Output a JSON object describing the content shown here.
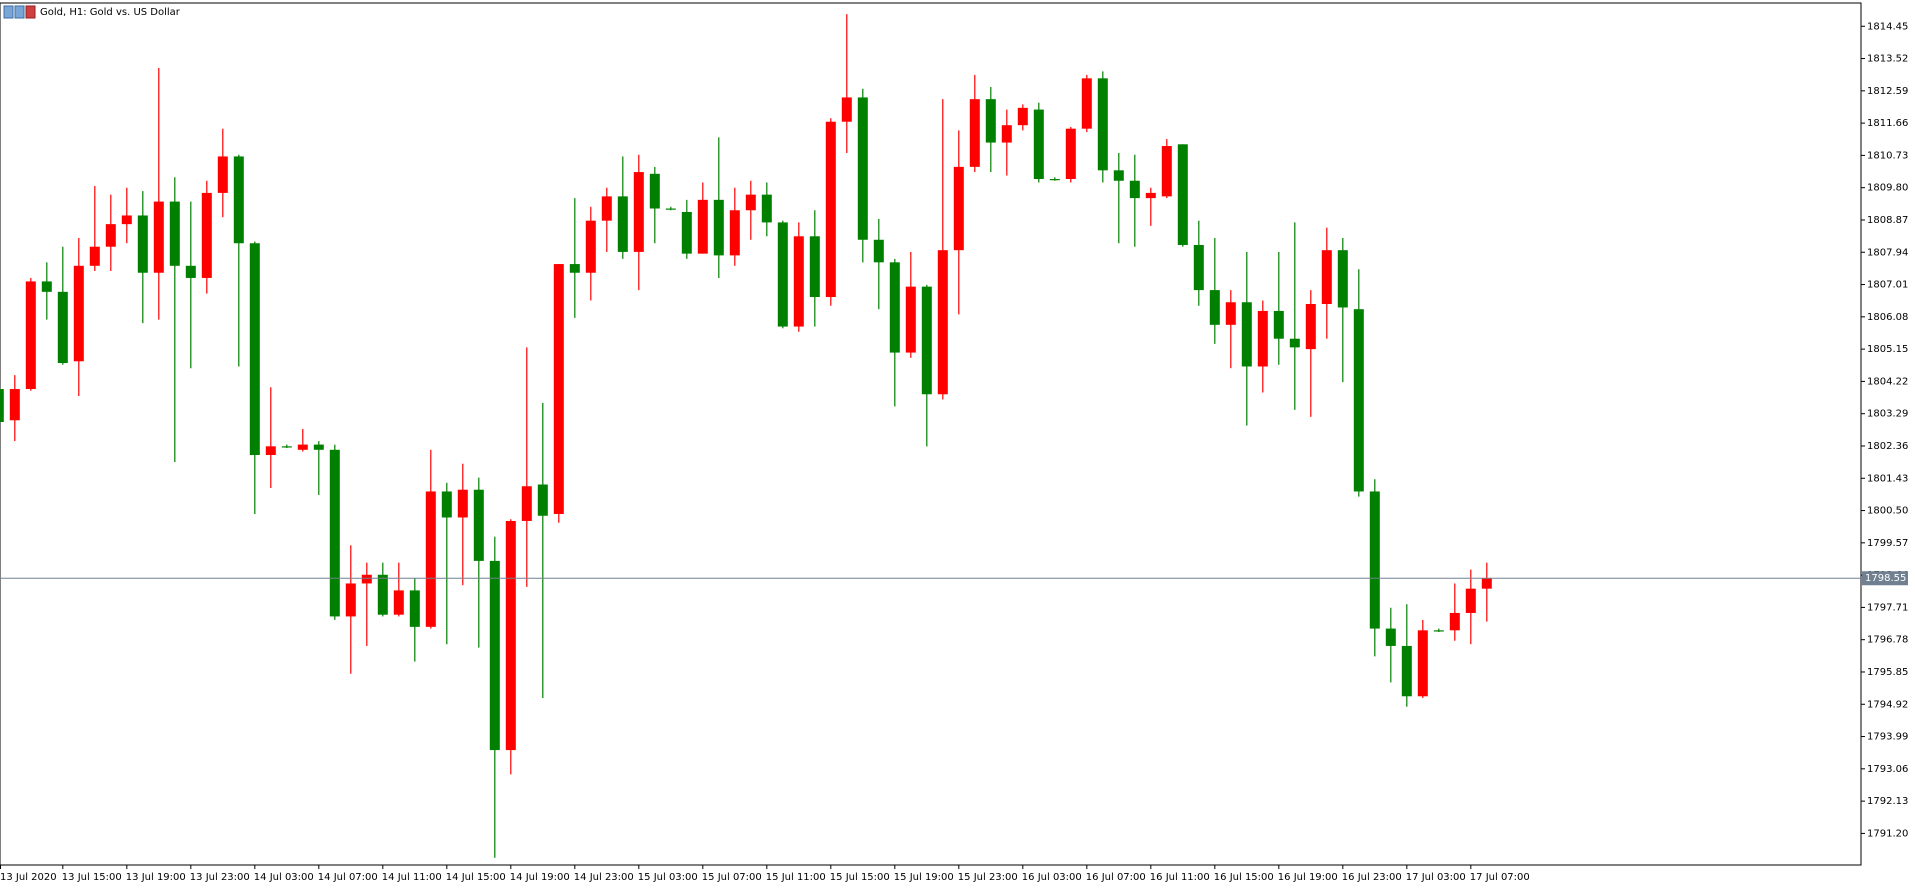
{
  "chart_data": {
    "type": "candlestick",
    "title": "Gold, H1:  Gold vs. US Dollar",
    "categories": [
      "13 Jul 2020",
      null,
      null,
      null,
      "13 Jul 15:00",
      null,
      null,
      null,
      "13 Jul 19:00",
      null,
      null,
      null,
      "13 Jul 23:00",
      null,
      null,
      null,
      "14 Jul 03:00",
      null,
      null,
      null,
      "14 Jul 07:00",
      null,
      null,
      null,
      "14 Jul 11:00",
      null,
      null,
      null,
      "14 Jul 15:00",
      null,
      null,
      null,
      "14 Jul 19:00",
      null,
      null,
      null,
      "14 Jul 23:00",
      null,
      null,
      null,
      "15 Jul 03:00",
      null,
      null,
      null,
      "15 Jul 07:00",
      null,
      null,
      null,
      "15 Jul 11:00",
      null,
      null,
      null,
      "15 Jul 15:00",
      null,
      null,
      null,
      "15 Jul 19:00",
      null,
      null,
      null,
      "15 Jul 23:00",
      null,
      null,
      null,
      "16 Jul 03:00",
      null,
      null,
      null,
      "16 Jul 07:00",
      null,
      null,
      null,
      "16 Jul 11:00",
      null,
      null,
      null,
      "16 Jul 15:00",
      null,
      null,
      null,
      "16 Jul 19:00",
      null,
      null,
      null,
      "16 Jul 23:00",
      null,
      null,
      null,
      "17 Jul 03:00",
      null,
      null,
      null,
      "17 Jul 07:00",
      null
    ],
    "open": [
      1804.0,
      1803.1,
      1804.0,
      1807.1,
      1806.8,
      1804.8,
      1807.55,
      1808.1,
      1808.75,
      1809.0,
      1807.35,
      1809.4,
      1807.55,
      1807.2,
      1809.65,
      1810.7,
      1808.2,
      1802.1,
      1802.35,
      1802.25,
      1802.4,
      1802.25,
      1797.45,
      1798.4,
      1798.65,
      1797.5,
      1798.2,
      1797.15,
      1801.05,
      1800.3,
      1801.1,
      1799.05,
      1793.6,
      1800.2,
      1801.25,
      1800.4,
      1807.6,
      1807.35,
      1808.85,
      1809.55,
      1807.95,
      1810.2,
      1809.2,
      1809.1,
      1807.9,
      1809.45,
      1807.85,
      1809.15,
      1809.6,
      1808.8,
      1805.8,
      1808.4,
      1806.65,
      1811.7,
      1812.4,
      1808.3,
      1807.65,
      1805.05,
      1806.95,
      1803.85,
      1808.0,
      1810.4,
      1812.35,
      1811.1,
      1811.6,
      1812.05,
      1810.05,
      1810.05,
      1811.5,
      1812.95,
      1810.3,
      1810.0,
      1809.5,
      1809.55,
      1811.05,
      1808.15,
      1806.85,
      1805.85,
      1806.5,
      1804.65,
      1806.25,
      1805.45,
      1805.15,
      1806.45,
      1808.0,
      1806.3,
      1801.05,
      1797.1,
      1796.6,
      1795.15,
      1797.05,
      1797.05,
      1797.55,
      1798.25
    ],
    "high": [
      1804.3,
      1804.4,
      1807.2,
      1807.65,
      1808.1,
      1808.35,
      1809.85,
      1809.6,
      1809.8,
      1809.7,
      1813.25,
      1810.1,
      1809.4,
      1810.0,
      1811.5,
      1810.75,
      1808.25,
      1804.05,
      1802.4,
      1802.85,
      1802.5,
      1802.4,
      1799.5,
      1799.0,
      1799.0,
      1799.0,
      1798.55,
      1802.25,
      1801.3,
      1801.85,
      1801.45,
      1799.75,
      1800.25,
      1805.2,
      1803.6,
      1807.6,
      1809.5,
      1809.25,
      1809.8,
      1810.7,
      1810.75,
      1810.4,
      1809.25,
      1809.45,
      1809.95,
      1811.25,
      1809.8,
      1810.0,
      1809.95,
      1808.85,
      1808.8,
      1809.15,
      1811.8,
      1814.8,
      1812.65,
      1808.9,
      1807.75,
      1807.95,
      1807.0,
      1812.35,
      1811.45,
      1813.05,
      1812.7,
      1812.05,
      1812.2,
      1812.25,
      1810.1,
      1811.55,
      1813.05,
      1813.15,
      1810.8,
      1810.75,
      1809.8,
      1811.2,
      1811.05,
      1808.85,
      1808.35,
      1806.85,
      1807.95,
      1806.55,
      1807.95,
      1808.8,
      1806.85,
      1808.65,
      1808.35,
      1807.45,
      1801.4,
      1797.7,
      1797.8,
      1797.35,
      1797.1,
      1798.4,
      1798.8,
      1799.0
    ],
    "low": [
      1802.8,
      1802.5,
      1803.95,
      1806.0,
      1804.7,
      1803.8,
      1807.4,
      1807.4,
      1808.2,
      1805.9,
      1806.0,
      1801.9,
      1804.6,
      1806.75,
      1808.95,
      1804.65,
      1800.4,
      1801.15,
      1802.3,
      1802.2,
      1800.95,
      1797.35,
      1795.8,
      1796.6,
      1797.45,
      1797.45,
      1796.15,
      1797.1,
      1796.65,
      1798.35,
      1796.55,
      1790.5,
      1792.9,
      1798.3,
      1795.1,
      1800.15,
      1806.05,
      1806.55,
      1807.95,
      1807.75,
      1806.85,
      1808.2,
      1809.15,
      1807.75,
      1807.9,
      1807.2,
      1807.55,
      1808.3,
      1808.4,
      1805.75,
      1805.65,
      1805.8,
      1806.4,
      1810.8,
      1807.65,
      1806.3,
      1803.5,
      1804.9,
      1802.35,
      1803.7,
      1806.15,
      1810.25,
      1810.25,
      1810.15,
      1811.45,
      1809.95,
      1810.0,
      1809.95,
      1811.4,
      1809.95,
      1808.2,
      1808.1,
      1808.7,
      1809.5,
      1808.1,
      1806.4,
      1805.3,
      1804.6,
      1802.95,
      1803.9,
      1804.7,
      1803.4,
      1803.2,
      1805.45,
      1804.2,
      1800.9,
      1796.3,
      1795.55,
      1794.85,
      1795.1,
      1797.0,
      1796.75,
      1796.65,
      1797.3
    ],
    "close": [
      1803.05,
      1804.0,
      1807.1,
      1806.8,
      1804.75,
      1807.55,
      1808.1,
      1808.75,
      1809.0,
      1807.35,
      1809.4,
      1807.55,
      1807.2,
      1809.65,
      1810.7,
      1808.2,
      1802.1,
      1802.35,
      1802.35,
      1802.4,
      1802.25,
      1797.45,
      1798.4,
      1798.65,
      1797.5,
      1798.2,
      1797.15,
      1801.05,
      1800.3,
      1801.1,
      1799.05,
      1793.6,
      1800.2,
      1801.2,
      1800.35,
      1807.6,
      1807.35,
      1808.85,
      1809.55,
      1807.95,
      1810.25,
      1809.2,
      1809.2,
      1807.9,
      1809.45,
      1807.85,
      1809.15,
      1809.6,
      1808.8,
      1805.8,
      1808.4,
      1806.65,
      1811.7,
      1812.4,
      1808.3,
      1807.65,
      1805.05,
      1806.95,
      1803.85,
      1808.0,
      1810.4,
      1812.35,
      1811.1,
      1811.6,
      1812.1,
      1810.05,
      1810.05,
      1811.5,
      1812.95,
      1810.3,
      1810.0,
      1809.5,
      1809.65,
      1811.0,
      1808.15,
      1806.85,
      1805.85,
      1806.5,
      1804.65,
      1806.25,
      1805.45,
      1805.2,
      1806.45,
      1808.0,
      1806.35,
      1801.05,
      1797.1,
      1796.6,
      1795.15,
      1797.05,
      1797.05,
      1797.55,
      1798.25,
      1798.55
    ],
    "up_color": "#ff0000",
    "down_color": "#008000",
    "last_price": 1798.55,
    "ylim": [
      1790.29,
      1815.12
    ],
    "yticks": [
      1814.45,
      1813.52,
      1812.59,
      1811.66,
      1810.73,
      {
        "value": 1809.8,
        "label": "1809.80"
      },
      1808.87,
      1807.94,
      1807.01,
      1806.08,
      1805.15,
      1804.22,
      1803.29,
      1802.36,
      1801.43,
      {
        "value": 1800.5,
        "label": "1800.50"
      },
      1799.57,
      1798.64,
      1797.71,
      1796.78,
      1795.85,
      1794.92,
      1793.99,
      1793.06,
      1792.13,
      {
        "value": 1791.2,
        "label": "1791.20"
      }
    ],
    "grid": false
  }
}
